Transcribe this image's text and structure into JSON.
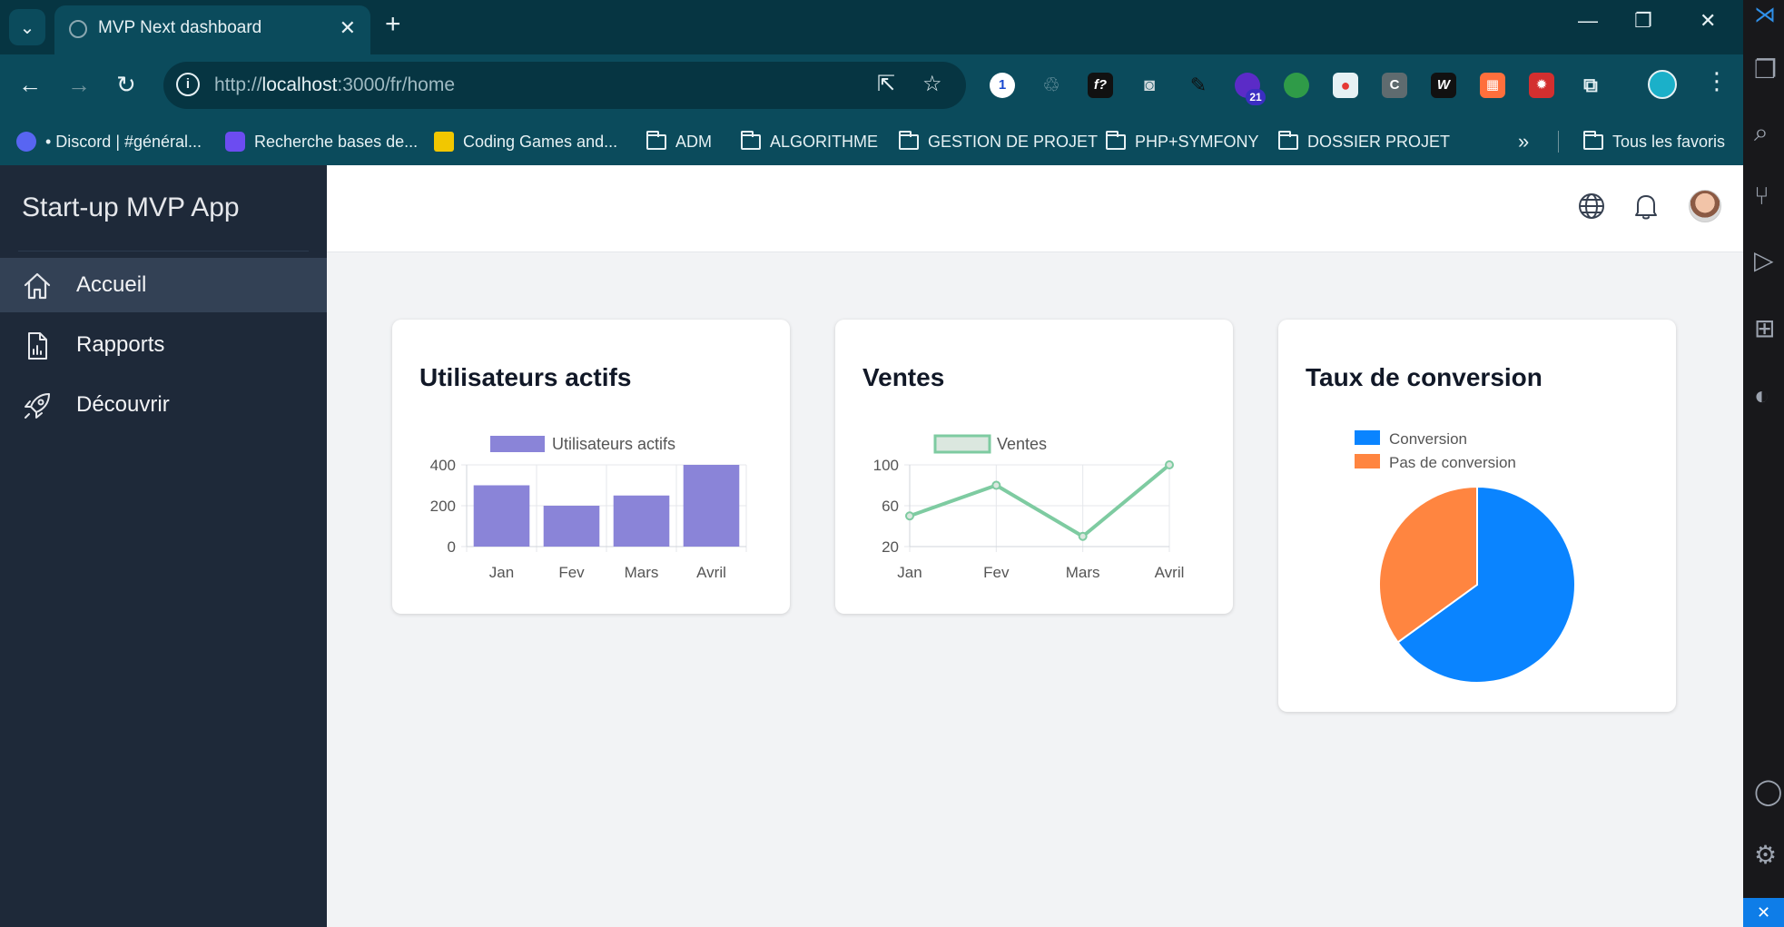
{
  "browser": {
    "tab_title": "MVP Next dashboard",
    "url_prefix": "http://",
    "url_host": "localhost",
    "url_rest": ":3000/fr/home",
    "extension_badge": "21",
    "bookmarks": [
      {
        "label": "• Discord | #général...",
        "icon": "discord-icon"
      },
      {
        "label": "Recherche bases de...",
        "icon": "search-db-icon"
      },
      {
        "label": "Coding Games and...",
        "icon": "codingame-icon"
      },
      {
        "label": "ADM",
        "icon": "folder-icon"
      },
      {
        "label": "ALGORITHME",
        "icon": "folder-icon"
      },
      {
        "label": "GESTION DE PROJET",
        "icon": "folder-icon"
      },
      {
        "label": "PHP+SYMFONY",
        "icon": "folder-icon"
      },
      {
        "label": "DOSSIER PROJET",
        "icon": "folder-icon"
      }
    ],
    "more_bookmarks": "»",
    "all_bookmarks": "Tous les favoris"
  },
  "sidebar": {
    "brand": "Start-up MVP App",
    "items": [
      {
        "label": "Accueil",
        "icon": "home-icon",
        "active": true
      },
      {
        "label": "Rapports",
        "icon": "report-icon",
        "active": false
      },
      {
        "label": "Découvrir",
        "icon": "rocket-icon",
        "active": false
      }
    ]
  },
  "cards": {
    "users": {
      "title": "Utilisateurs actifs"
    },
    "sales": {
      "title": "Ventes"
    },
    "conversion": {
      "title": "Taux de conversion"
    }
  },
  "chart_data": [
    {
      "type": "bar",
      "title": "Utilisateurs actifs",
      "categories": [
        "Jan",
        "Fev",
        "Mars",
        "Avril"
      ],
      "series": [
        {
          "name": "Utilisateurs actifs",
          "values": [
            300,
            200,
            250,
            400
          ]
        }
      ],
      "ylim": [
        0,
        400
      ],
      "yticks": [
        0,
        200,
        400
      ],
      "color": "#8a84d8",
      "legend": "top"
    },
    {
      "type": "line",
      "title": "Ventes",
      "categories": [
        "Jan",
        "Fev",
        "Mars",
        "Avril"
      ],
      "series": [
        {
          "name": "Ventes",
          "values": [
            50,
            80,
            30,
            100
          ]
        }
      ],
      "ylim": [
        20,
        100
      ],
      "yticks": [
        20,
        60,
        100
      ],
      "color": "#7ecba1",
      "legend": "top"
    },
    {
      "type": "pie",
      "title": "Taux de conversion",
      "labels": [
        "Conversion",
        "Pas de conversion"
      ],
      "values": [
        65,
        35
      ],
      "colors": [
        "#0a84ff",
        "#ff8540"
      ],
      "legend": "top"
    }
  ]
}
